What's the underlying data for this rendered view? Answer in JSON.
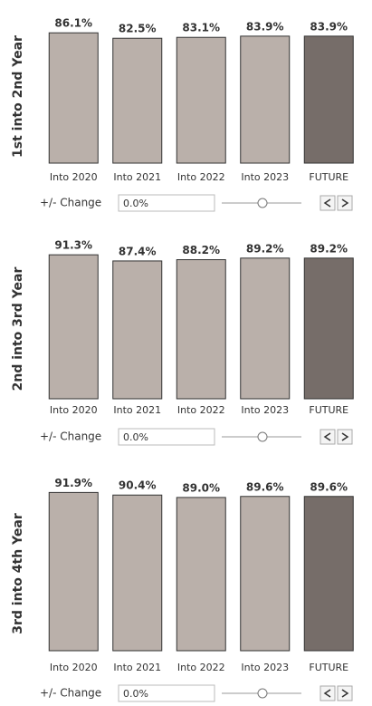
{
  "chart_data": [
    {
      "type": "bar",
      "y_label": "1st into 2nd Year",
      "categories": [
        "Into 2020",
        "Into 2021",
        "Into 2022",
        "Into 2023",
        "FUTURE"
      ],
      "values": [
        86.1,
        82.5,
        83.1,
        83.9,
        83.9
      ],
      "value_labels": [
        "86.1%",
        "82.5%",
        "83.1%",
        "83.9%",
        "83.9%"
      ],
      "colors": [
        "#bab0aa",
        "#bab0aa",
        "#bab0aa",
        "#bab0aa",
        "#766d69"
      ],
      "ylim": [
        0,
        100
      ],
      "control": {
        "label": "+/- Change",
        "value": "0.0%"
      }
    },
    {
      "type": "bar",
      "y_label": "2nd into 3rd Year",
      "categories": [
        "Into 2020",
        "Into 2021",
        "Into 2022",
        "Into 2023",
        "FUTURE"
      ],
      "values": [
        91.3,
        87.4,
        88.2,
        89.2,
        89.2
      ],
      "value_labels": [
        "91.3%",
        "87.4%",
        "88.2%",
        "89.2%",
        "89.2%"
      ],
      "colors": [
        "#bab0aa",
        "#bab0aa",
        "#bab0aa",
        "#bab0aa",
        "#766d69"
      ],
      "ylim": [
        0,
        100
      ],
      "control": {
        "label": "+/- Change",
        "value": "0.0%"
      }
    },
    {
      "type": "bar",
      "y_label": "3rd into 4th Year",
      "categories": [
        "Into 2020",
        "Into 2021",
        "Into 2022",
        "Into 2023",
        "FUTURE"
      ],
      "values": [
        91.9,
        90.4,
        89.0,
        89.6,
        89.6
      ],
      "value_labels": [
        "91.9%",
        "90.4%",
        "89.0%",
        "89.6%",
        "89.6%"
      ],
      "colors": [
        "#bab0aa",
        "#bab0aa",
        "#bab0aa",
        "#bab0aa",
        "#766d69"
      ],
      "ylim": [
        0,
        100
      ],
      "control": {
        "label": "+/- Change",
        "value": "0.0%"
      }
    }
  ]
}
